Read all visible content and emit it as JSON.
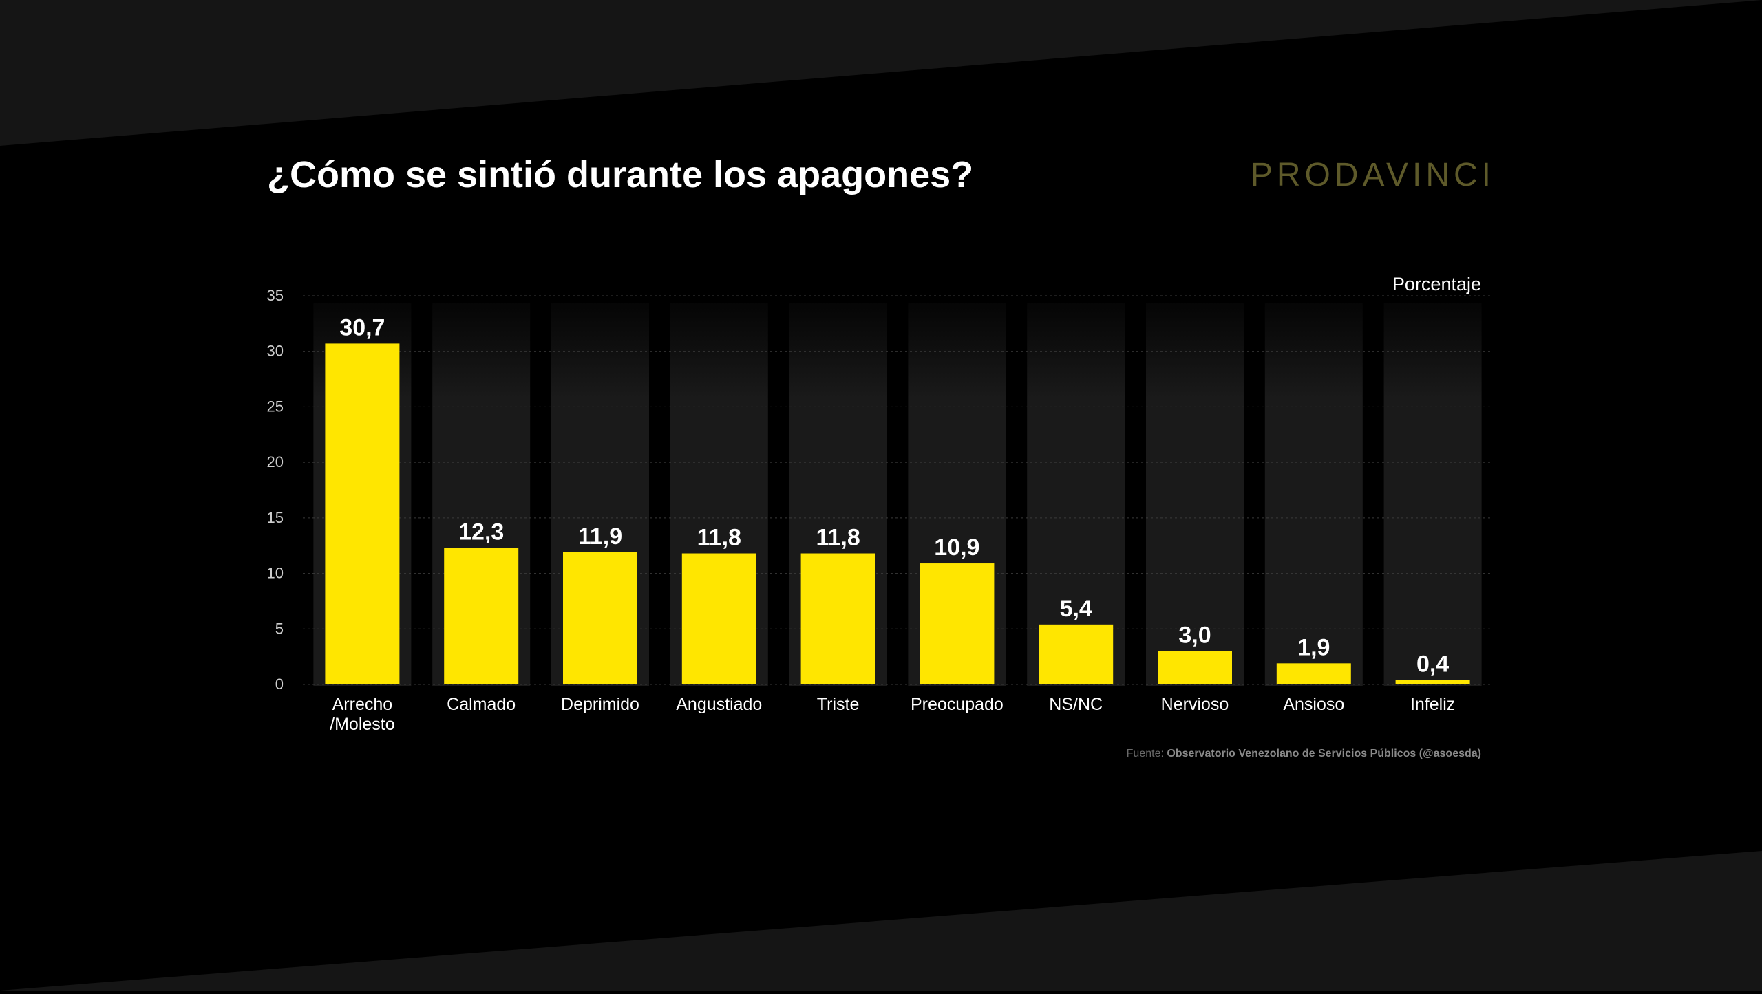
{
  "title": "¿Cómo se sintió durante los apagones?",
  "brand": "PRODAVINCI",
  "unit_label": "Porcentaje",
  "source": {
    "prefix": "Fuente: ",
    "text": "Observatorio Venezolano de Servicios Públicos (@asoesda)"
  },
  "colors": {
    "background": "#000000",
    "band": "#151515",
    "bar": "#FFE600",
    "column_bg": "#1a1a1a",
    "text": "#ffffff",
    "axis_text": "#cfcfcf",
    "brand": "#5e5a2a",
    "source_prefix": "#6a6a6a",
    "source_text": "#8a8a8a",
    "grid": "#3a3a3a"
  },
  "chart_data": {
    "type": "bar",
    "title": "¿Cómo se sintió durante los apagones?",
    "xlabel": "",
    "ylabel": "Porcentaje",
    "ylim": [
      0,
      35
    ],
    "yticks": [
      0,
      5,
      10,
      15,
      20,
      25,
      30,
      35
    ],
    "grid": true,
    "categories": [
      "Arrecho\n/Molesto",
      "Calmado",
      "Deprimido",
      "Angustiado",
      "Triste",
      "Preocupado",
      "NS/NC",
      "Nervioso",
      "Ansioso",
      "Infeliz"
    ],
    "values": [
      30.7,
      12.3,
      11.9,
      11.8,
      11.8,
      10.9,
      5.4,
      3.0,
      1.9,
      0.4
    ],
    "labels": [
      "30,7",
      "12,3",
      "11,9",
      "11,8",
      "11,8",
      "10,9",
      "5,4",
      "3,0",
      "1,9",
      "0,4"
    ]
  }
}
